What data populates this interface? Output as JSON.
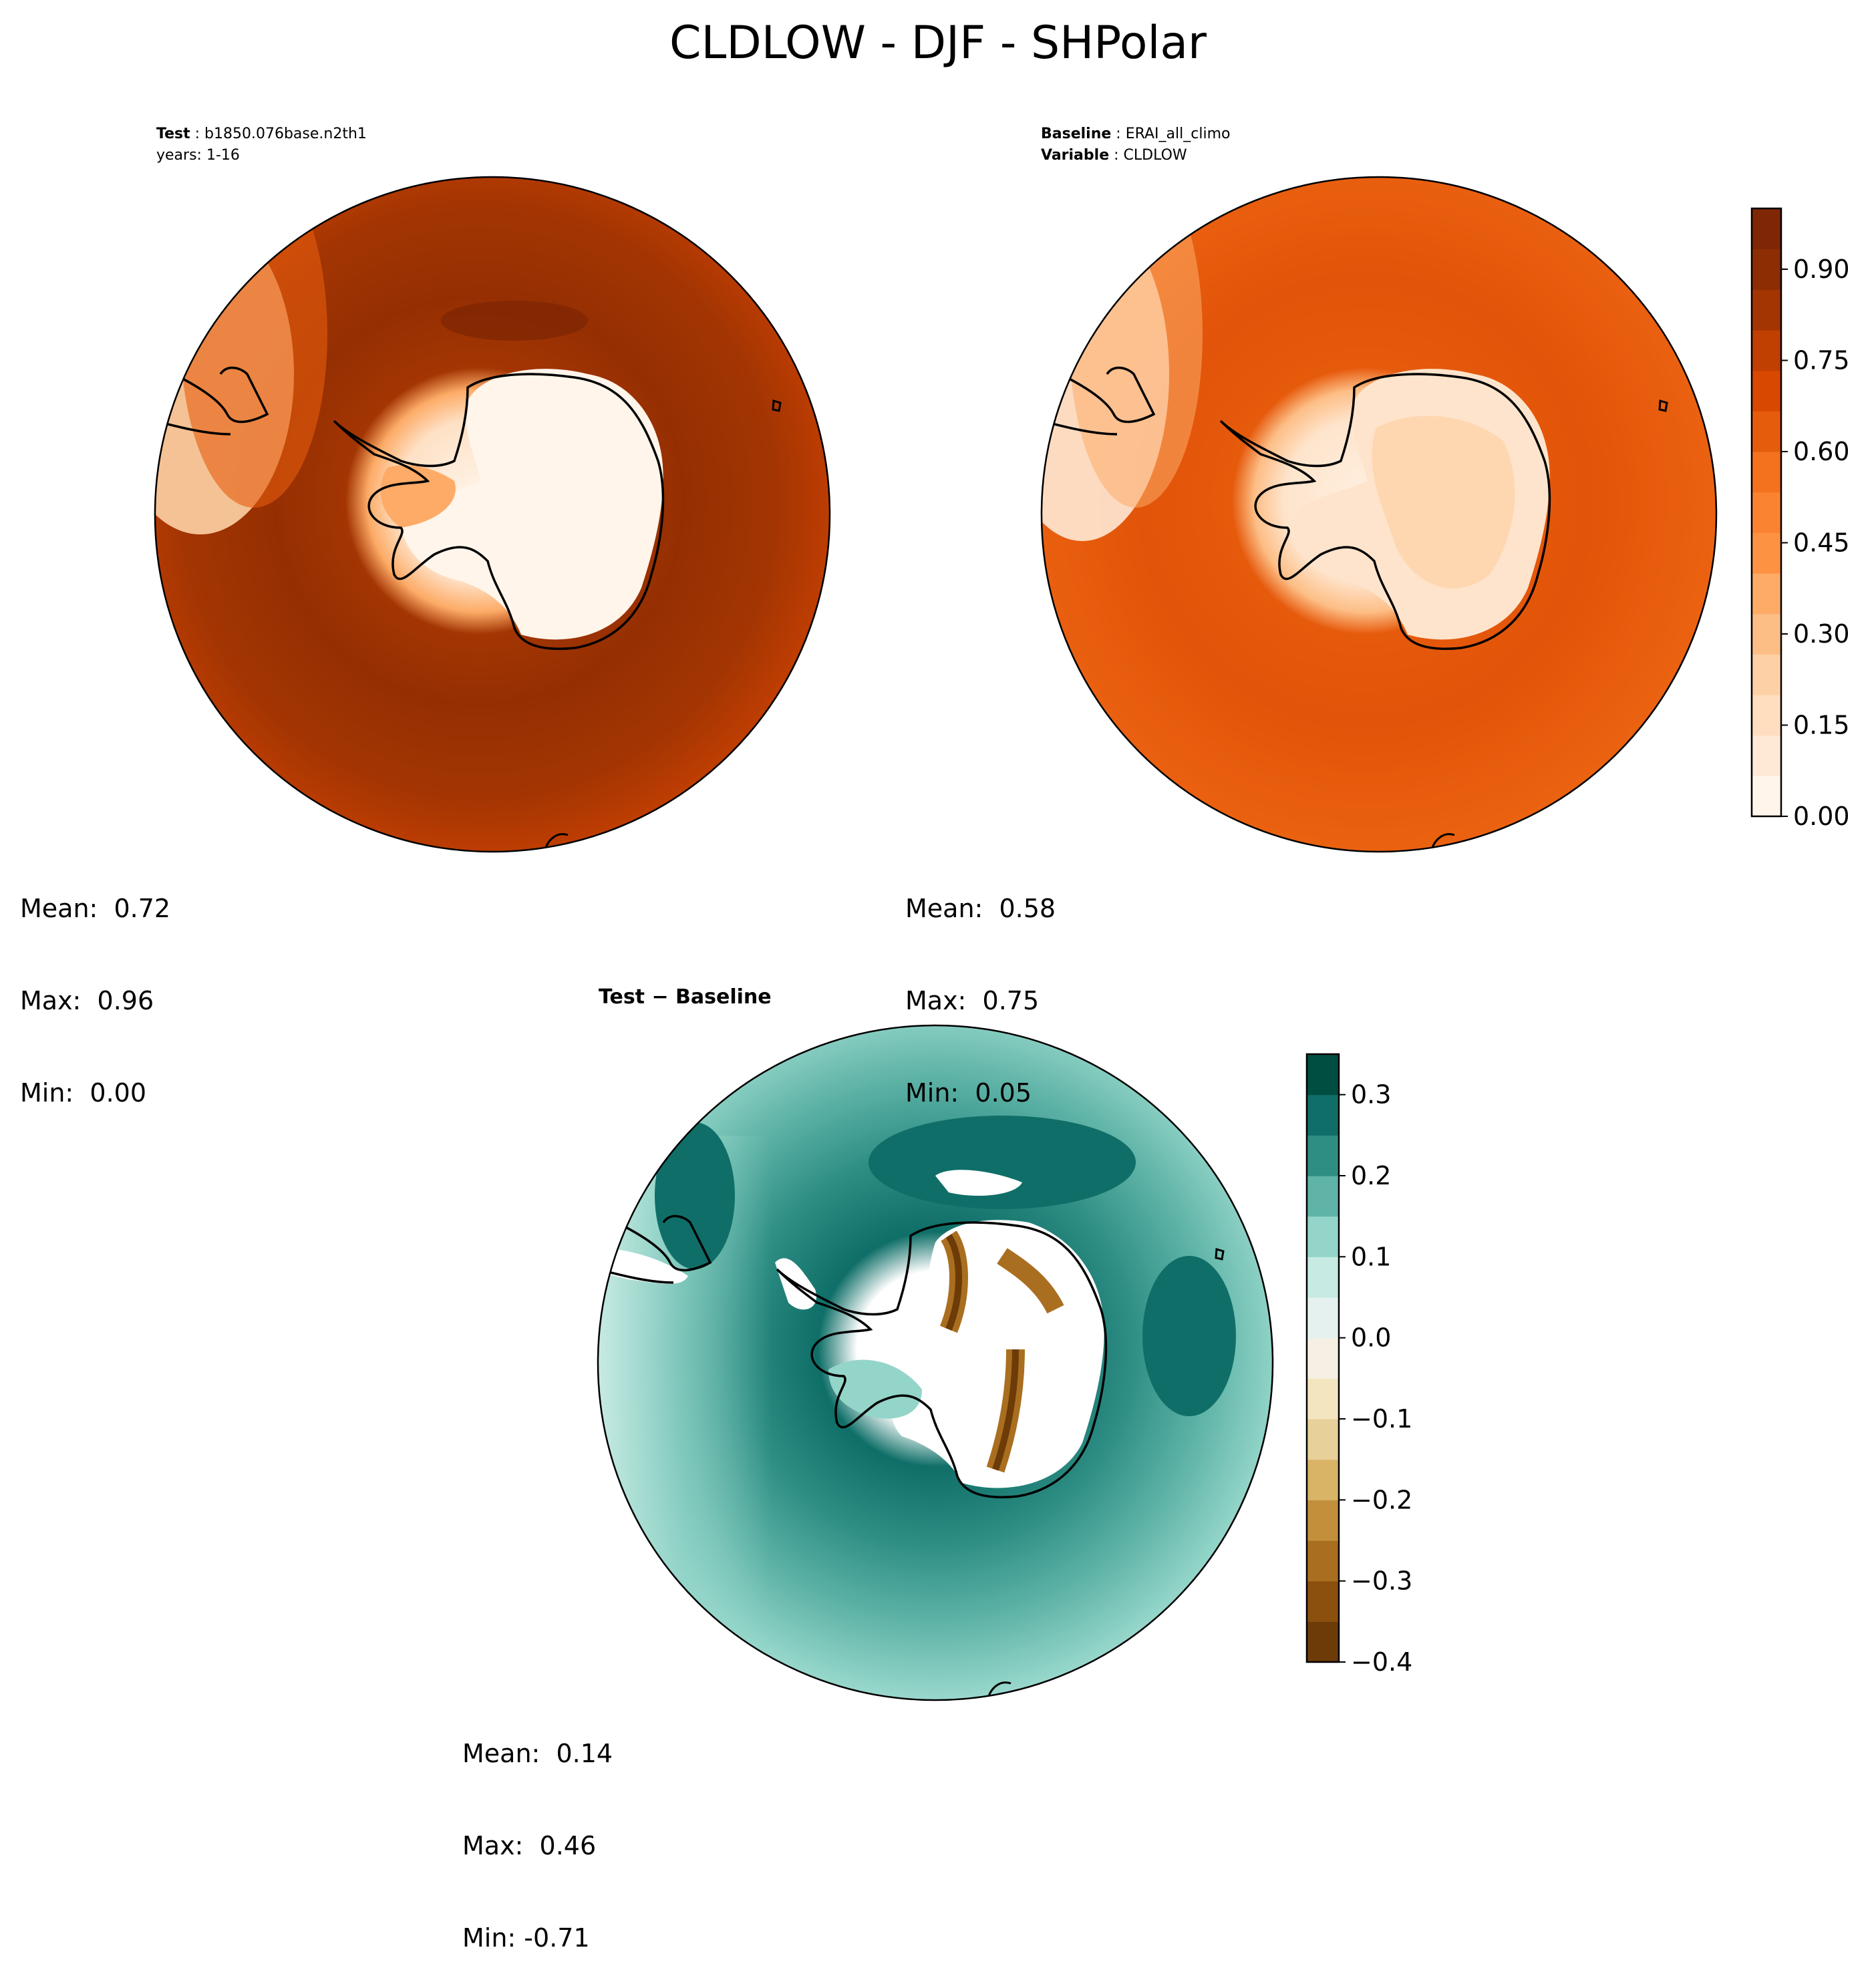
{
  "figure_title": "CLDLOW - DJF - SHPolar",
  "panels": {
    "test": {
      "label": "Test",
      "name": "b1850.076base.n2th1",
      "years": "years: 1-16",
      "mean": "Mean:  0.72",
      "max": "Max:  0.96",
      "min": "Min:  0.00"
    },
    "baseline": {
      "label": "Baseline",
      "name": "ERAI_all_climo",
      "variable_label": "Variable",
      "variable": "CLDLOW",
      "mean": "Mean:  0.58",
      "max": "Max:  0.75",
      "min": "Min:  0.05"
    },
    "diff": {
      "title": "Test − Baseline",
      "mean": "Mean:  0.14",
      "max": "Max:  0.46",
      "min": "Min: -0.71"
    }
  },
  "chart_data": [
    {
      "type": "heatmap",
      "projection": "south-polar-stereographic",
      "title": "Test",
      "stats": {
        "mean": 0.72,
        "max": 0.96,
        "min": 0.0
      },
      "colormap": "Oranges",
      "colorbar": {
        "range": [
          0.0,
          1.0
        ],
        "ticks": [
          "0.00",
          "0.15",
          "0.30",
          "0.45",
          "0.60",
          "0.75",
          "0.90"
        ]
      }
    },
    {
      "type": "heatmap",
      "projection": "south-polar-stereographic",
      "title": "Baseline",
      "stats": {
        "mean": 0.58,
        "max": 0.75,
        "min": 0.05
      },
      "colormap": "Oranges",
      "colorbar": {
        "range": [
          0.0,
          1.0
        ],
        "ticks": [
          "0.00",
          "0.15",
          "0.30",
          "0.45",
          "0.60",
          "0.75",
          "0.90"
        ]
      }
    },
    {
      "type": "heatmap",
      "projection": "south-polar-stereographic",
      "title": "Test − Baseline",
      "stats": {
        "mean": 0.14,
        "max": 0.46,
        "min": -0.71
      },
      "colormap": "BrBG",
      "colorbar": {
        "range": [
          -0.4,
          0.35
        ],
        "ticks": [
          "−0.4",
          "−0.3",
          "−0.2",
          "−0.1",
          "0.0",
          "0.1",
          "0.2",
          "0.3"
        ]
      }
    }
  ],
  "colorbars": {
    "oranges": {
      "ticks": [
        "0.00",
        "0.15",
        "0.30",
        "0.45",
        "0.60",
        "0.75",
        "0.90"
      ],
      "values": [
        0.0,
        0.15,
        0.3,
        0.45,
        0.6,
        0.75,
        0.9
      ],
      "range": [
        0.0,
        1.0
      ],
      "colors": [
        "#fff5eb",
        "#fee9d5",
        "#fedebf",
        "#fdd1a5",
        "#fdbe86",
        "#fdab67",
        "#fd9243",
        "#fa8331",
        "#f4721e",
        "#e65c0d",
        "#d94801",
        "#c04001",
        "#a33503",
        "#8c2d04",
        "#7f2704"
      ]
    },
    "brbg": {
      "ticks": [
        "−0.4",
        "−0.3",
        "−0.2",
        "−0.1",
        "0.0",
        "0.1",
        "0.2",
        "0.3"
      ],
      "values": [
        -0.4,
        -0.3,
        -0.2,
        -0.1,
        0.0,
        0.1,
        0.2,
        0.3
      ],
      "range": [
        -0.4,
        0.35
      ],
      "colors": [
        "#6c3b07",
        "#8b500d",
        "#a96e1f",
        "#c38f3b",
        "#d9b366",
        "#e8d09a",
        "#f3e5bf",
        "#f5f0e3",
        "#e4f1ee",
        "#c7eae3",
        "#94d5c9",
        "#5fb3a7",
        "#2e8e84",
        "#0f6f68",
        "#004d42"
      ]
    }
  },
  "map_colors": {
    "test": {
      "ocean_outer": "#c64001",
      "ocean_mid": "#a33503",
      "ocean_inner": "#952f02",
      "coast_ring": "#e65c0d",
      "land_edge": "#fdab67",
      "land_mid": "#fee1c5",
      "land_core": "#fff5eb",
      "top_left_light": "#fdd1a5"
    },
    "base": {
      "ocean_outer": "#ec6412",
      "ocean_mid": "#e25409",
      "ocean_inner": "#e65a0c",
      "land_edge": "#fdbe86",
      "land_mid": "#fee4cc",
      "land_core": "#fff0e0",
      "top_left_light": "#fee9d5"
    },
    "diff": {
      "outer_light": "#c7eae3",
      "outer_mid": "#94d5c9",
      "ring": "#5fb3a7",
      "ring2": "#2e8e84",
      "inner": "#0f6f68",
      "coast": "#004d42",
      "brown_dark": "#6c3b07",
      "brown_mid": "#a96e1f",
      "white": "#ffffff"
    }
  }
}
